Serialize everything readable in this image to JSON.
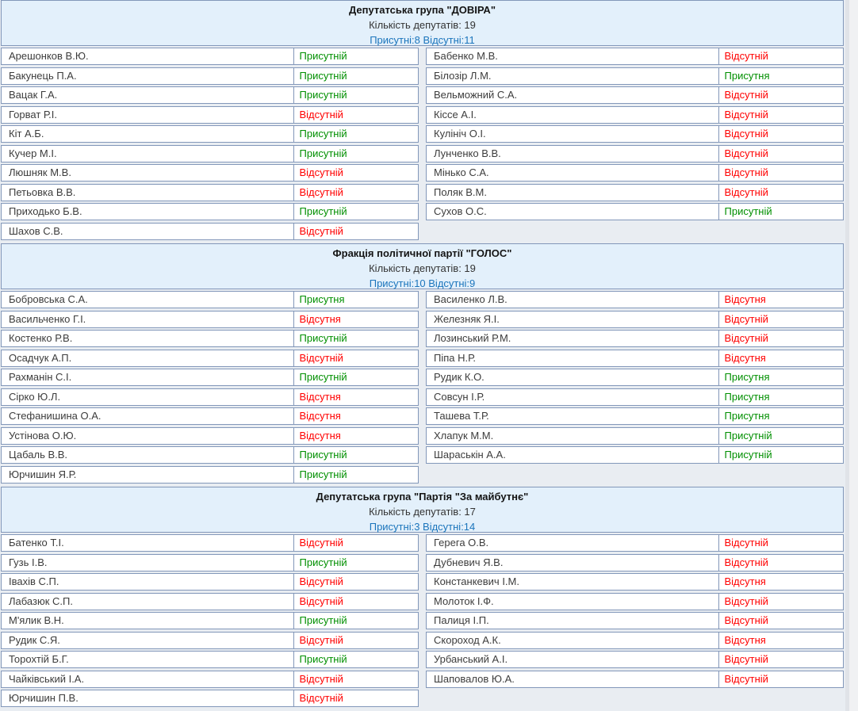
{
  "colors": {
    "present": "#008f00",
    "absent": "#ff0000",
    "stats_blue": "#1b75bc",
    "header_bg": "#e3f0fb",
    "border": "#8297b9",
    "name_text": "#3c3c3c"
  },
  "groups": [
    {
      "title": "Депутатська група \"ДОВІРА\"",
      "count_line": "Кількість депутатів: 19",
      "stats_line": "Присутні:8 Відсутні:11",
      "left": [
        {
          "name": "Арешонков В.Ю.",
          "status": "Присутній",
          "state": "present"
        },
        {
          "name": "Бакунець П.А.",
          "status": "Присутній",
          "state": "present"
        },
        {
          "name": "Вацак Г.А.",
          "status": "Присутній",
          "state": "present"
        },
        {
          "name": "Горват Р.І.",
          "status": "Відсутній",
          "state": "absent"
        },
        {
          "name": "Кіт А.Б.",
          "status": "Присутній",
          "state": "present"
        },
        {
          "name": "Кучер М.І.",
          "status": "Присутній",
          "state": "present"
        },
        {
          "name": "Люшняк М.В.",
          "status": "Відсутній",
          "state": "absent"
        },
        {
          "name": "Петьовка В.В.",
          "status": "Відсутній",
          "state": "absent"
        },
        {
          "name": "Приходько Б.В.",
          "status": "Присутній",
          "state": "present"
        },
        {
          "name": "Шахов С.В.",
          "status": "Відсутній",
          "state": "absent"
        }
      ],
      "right": [
        {
          "name": "Бабенко М.В.",
          "status": "Відсутній",
          "state": "absent"
        },
        {
          "name": "Білозір Л.М.",
          "status": "Присутня",
          "state": "present"
        },
        {
          "name": "Вельможний С.А.",
          "status": "Відсутній",
          "state": "absent"
        },
        {
          "name": "Кіссе А.І.",
          "status": "Відсутній",
          "state": "absent"
        },
        {
          "name": "Кулініч О.І.",
          "status": "Відсутній",
          "state": "absent"
        },
        {
          "name": "Лунченко В.В.",
          "status": "Відсутній",
          "state": "absent"
        },
        {
          "name": "Мінько С.А.",
          "status": "Відсутній",
          "state": "absent"
        },
        {
          "name": "Поляк В.М.",
          "status": "Відсутній",
          "state": "absent"
        },
        {
          "name": "Сухов О.С.",
          "status": "Присутній",
          "state": "present"
        }
      ]
    },
    {
      "title": "Фракція політичної партії \"ГОЛОС\"",
      "count_line": "Кількість депутатів: 19",
      "stats_line": "Присутні:10 Відсутні:9",
      "left": [
        {
          "name": "Бобровська С.А.",
          "status": "Присутня",
          "state": "present"
        },
        {
          "name": "Васильченко Г.І.",
          "status": "Відсутня",
          "state": "absent"
        },
        {
          "name": "Костенко Р.В.",
          "status": "Присутній",
          "state": "present"
        },
        {
          "name": "Осадчук А.П.",
          "status": "Відсутній",
          "state": "absent"
        },
        {
          "name": "Рахманін С.І.",
          "status": "Присутній",
          "state": "present"
        },
        {
          "name": "Сірко Ю.Л.",
          "status": "Відсутня",
          "state": "absent"
        },
        {
          "name": "Стефанишина О.А.",
          "status": "Відсутня",
          "state": "absent"
        },
        {
          "name": "Устінова О.Ю.",
          "status": "Відсутня",
          "state": "absent"
        },
        {
          "name": "Цабаль В.В.",
          "status": "Присутній",
          "state": "present"
        },
        {
          "name": "Юрчишин Я.Р.",
          "status": "Присутній",
          "state": "present"
        }
      ],
      "right": [
        {
          "name": "Василенко Л.В.",
          "status": "Відсутня",
          "state": "absent"
        },
        {
          "name": "Железняк Я.І.",
          "status": "Відсутній",
          "state": "absent"
        },
        {
          "name": "Лозинський Р.М.",
          "status": "Відсутній",
          "state": "absent"
        },
        {
          "name": "Піпа Н.Р.",
          "status": "Відсутня",
          "state": "absent"
        },
        {
          "name": "Рудик К.О.",
          "status": "Присутня",
          "state": "present"
        },
        {
          "name": "Совсун І.Р.",
          "status": "Присутня",
          "state": "present"
        },
        {
          "name": "Ташева Т.Р.",
          "status": "Присутня",
          "state": "present"
        },
        {
          "name": "Хлапук М.М.",
          "status": "Присутній",
          "state": "present"
        },
        {
          "name": "Шараськін А.А.",
          "status": "Присутній",
          "state": "present"
        }
      ]
    },
    {
      "title": "Депутатська група \"Партія \"За майбутнє\"",
      "count_line": "Кількість депутатів: 17",
      "stats_line": "Присутні:3 Відсутні:14",
      "left": [
        {
          "name": "Батенко Т.І.",
          "status": "Відсутній",
          "state": "absent"
        },
        {
          "name": "Гузь І.В.",
          "status": "Присутній",
          "state": "present"
        },
        {
          "name": "Івахів С.П.",
          "status": "Відсутній",
          "state": "absent"
        },
        {
          "name": "Лабазюк С.П.",
          "status": "Відсутній",
          "state": "absent"
        },
        {
          "name": "М'ялик В.Н.",
          "status": "Присутній",
          "state": "present"
        },
        {
          "name": "Рудик С.Я.",
          "status": "Відсутній",
          "state": "absent"
        },
        {
          "name": "Торохтій Б.Г.",
          "status": "Присутній",
          "state": "present"
        },
        {
          "name": "Чайківський І.А.",
          "status": "Відсутній",
          "state": "absent"
        },
        {
          "name": "Юрчишин П.В.",
          "status": "Відсутній",
          "state": "absent"
        }
      ],
      "right": [
        {
          "name": "Герега О.В.",
          "status": "Відсутній",
          "state": "absent"
        },
        {
          "name": "Дубневич Я.В.",
          "status": "Відсутній",
          "state": "absent"
        },
        {
          "name": "Констанкевич І.М.",
          "status": "Відсутня",
          "state": "absent"
        },
        {
          "name": "Молоток І.Ф.",
          "status": "Відсутній",
          "state": "absent"
        },
        {
          "name": "Палиця І.П.",
          "status": "Відсутній",
          "state": "absent"
        },
        {
          "name": "Скороход А.К.",
          "status": "Відсутня",
          "state": "absent"
        },
        {
          "name": "Урбанський А.І.",
          "status": "Відсутній",
          "state": "absent"
        },
        {
          "name": "Шаповалов Ю.А.",
          "status": "Відсутній",
          "state": "absent"
        }
      ]
    }
  ]
}
